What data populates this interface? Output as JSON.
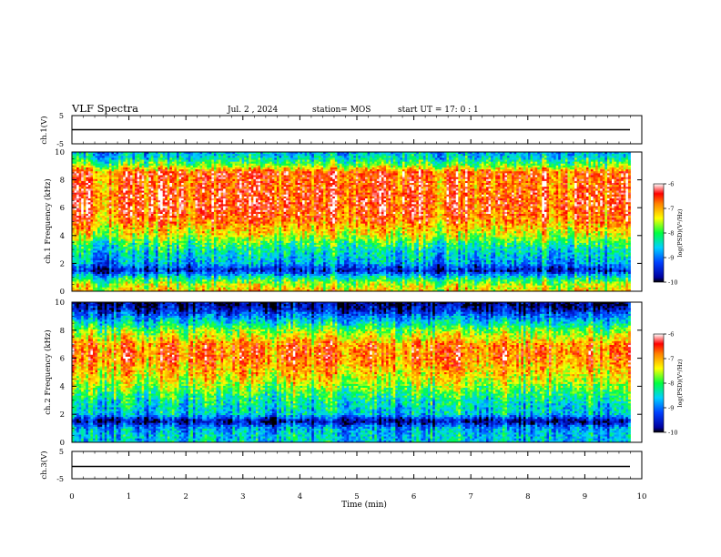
{
  "header": {
    "title": "VLF Spectra",
    "date": "Jul. 2 , 2024",
    "station": "station= MOS",
    "start_ut": "start UT = 17: 0 : 1"
  },
  "chart_data": [
    {
      "type": "line",
      "panel": "ch1-waveform",
      "ylabel": "ch.1(V)",
      "ylim": [
        -5,
        5
      ],
      "yticks": [
        "5",
        "-5"
      ],
      "series": [
        {
          "x": [
            0,
            9.8
          ],
          "y": [
            -1.5,
            -1.5
          ]
        }
      ]
    },
    {
      "type": "heatmap",
      "panel": "ch1-spectrogram",
      "ylabel": "ch.1 Frequency (kHz)",
      "ylim": [
        0,
        10
      ],
      "yticks": [
        "0",
        "2",
        "4",
        "6",
        "8",
        "10"
      ],
      "xlim": [
        0,
        10
      ],
      "data_xmax": 9.8,
      "z_profile": {
        "freq_khz": [
          0,
          0.5,
          1,
          1.5,
          2,
          2.5,
          3,
          3.5,
          4,
          4.5,
          5,
          5.5,
          6,
          6.5,
          7,
          7.5,
          8,
          8.5,
          9,
          9.5,
          10
        ],
        "log_psd": [
          -7.2,
          -7.6,
          -8.4,
          -9.6,
          -8.8,
          -8.6,
          -8.4,
          -8.0,
          -7.5,
          -7.2,
          -6.9,
          -6.7,
          -6.6,
          -6.6,
          -6.6,
          -6.7,
          -6.7,
          -6.6,
          -7.7,
          -8.4,
          -8.8
        ]
      },
      "colorbar": {
        "label": "log(PSD)(V²/Hz)",
        "ticks": [
          "-6",
          "-7",
          "-8",
          "-9",
          "-10"
        ],
        "range": [
          -10,
          -6
        ]
      }
    },
    {
      "type": "heatmap",
      "panel": "ch2-spectrogram",
      "ylabel": "ch.2 Frequency (kHz)",
      "ylim": [
        0,
        10
      ],
      "yticks": [
        "0",
        "2",
        "4",
        "6",
        "8",
        "10"
      ],
      "xlim": [
        0,
        10
      ],
      "data_xmax": 9.8,
      "z_profile": {
        "freq_khz": [
          0,
          0.5,
          1,
          1.5,
          2,
          2.5,
          3,
          3.5,
          4,
          4.5,
          5,
          5.5,
          6,
          6.5,
          7,
          7.5,
          8,
          8.5,
          9,
          9.5,
          10
        ],
        "log_psd": [
          -8.6,
          -8.6,
          -8.8,
          -9.8,
          -8.6,
          -8.5,
          -8.3,
          -8.0,
          -7.7,
          -7.4,
          -7.2,
          -7.0,
          -6.8,
          -6.8,
          -6.9,
          -7.4,
          -7.8,
          -8.4,
          -9.0,
          -9.6,
          -9.9
        ]
      },
      "colorbar": {
        "label": "log(PSD)(V²/Hz)",
        "ticks": [
          "-6",
          "-7",
          "-8",
          "-9",
          "-10"
        ],
        "range": [
          -10,
          -6
        ]
      }
    },
    {
      "type": "line",
      "panel": "ch3-waveform",
      "ylabel": "ch.3(V)",
      "ylim": [
        -5,
        5
      ],
      "yticks": [
        "5",
        "-5"
      ],
      "series": [
        {
          "x": [
            0,
            9.8
          ],
          "y": [
            -1.5,
            -1.5
          ]
        }
      ]
    }
  ],
  "xaxis": {
    "label": "Time (min)",
    "ticks": [
      "0",
      "1",
      "2",
      "3",
      "4",
      "5",
      "6",
      "7",
      "8",
      "9",
      "10"
    ]
  }
}
